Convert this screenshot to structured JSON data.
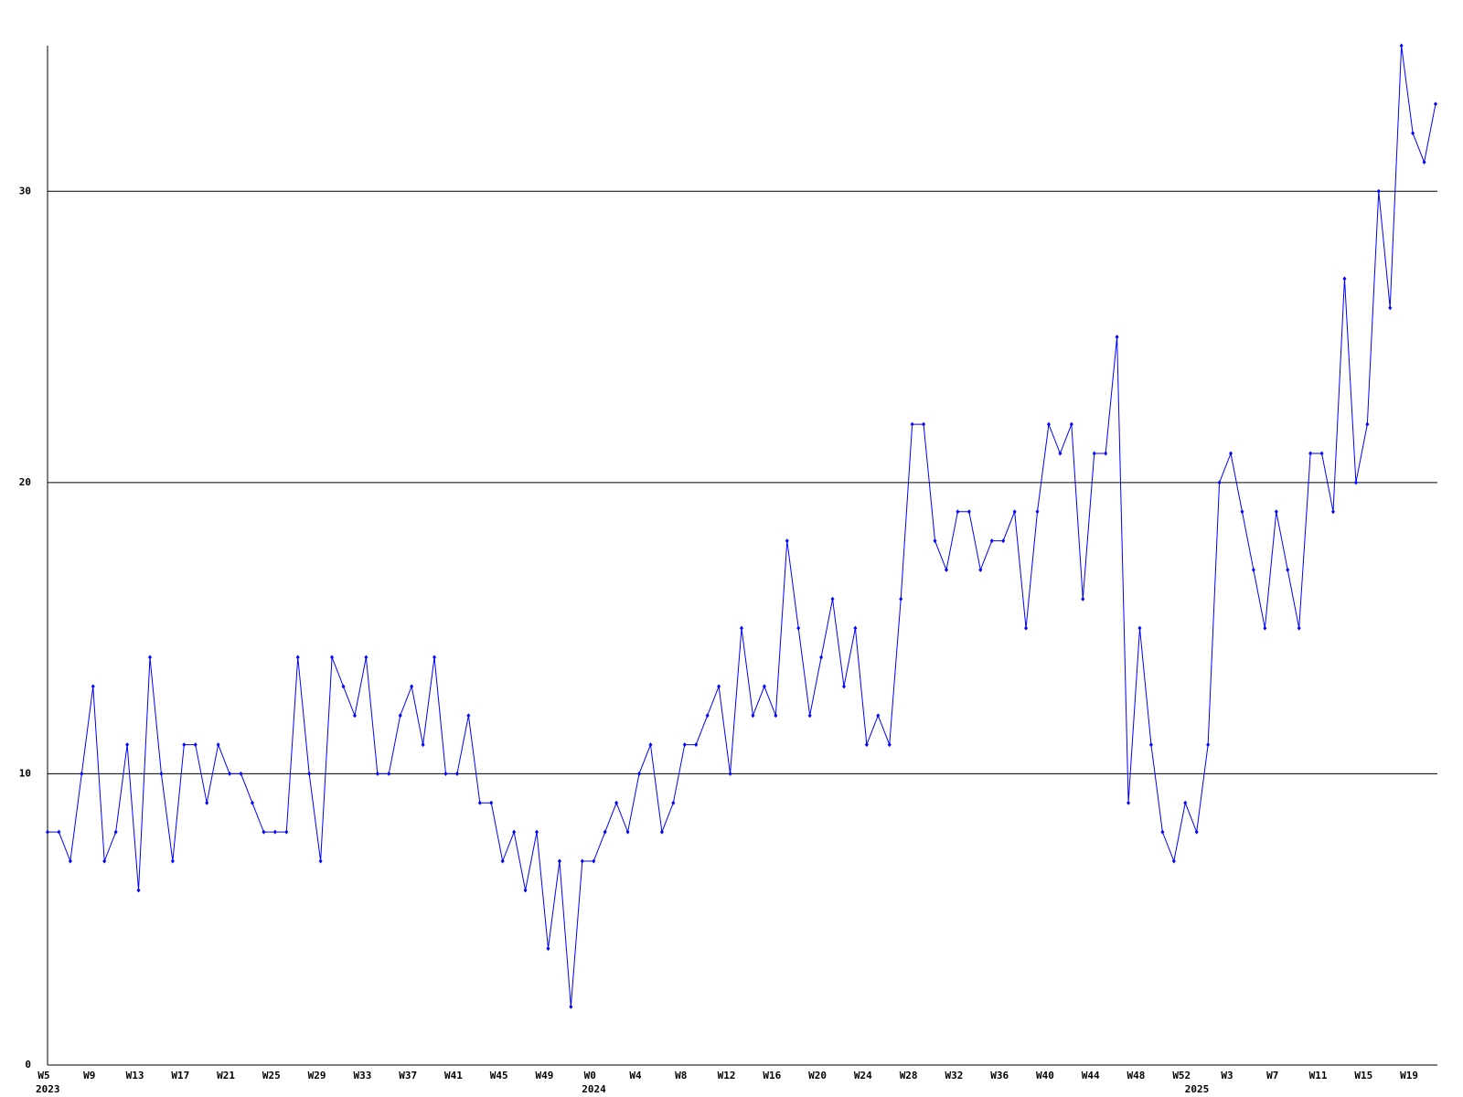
{
  "chart_data": {
    "type": "line",
    "categories": [
      "W5",
      null,
      null,
      null,
      "W9",
      null,
      null,
      null,
      "W13",
      null,
      null,
      null,
      "W17",
      null,
      null,
      null,
      "W21",
      null,
      null,
      null,
      "W25",
      null,
      null,
      null,
      "W29",
      null,
      null,
      null,
      "W33",
      null,
      null,
      null,
      "W37",
      null,
      null,
      null,
      "W41",
      null,
      null,
      null,
      "W45",
      null,
      null,
      null,
      "W49",
      null,
      null,
      null,
      "W0",
      null,
      null,
      null,
      "W4",
      null,
      null,
      null,
      "W8",
      null,
      null,
      null,
      "W12",
      null,
      null,
      null,
      "W16",
      null,
      null,
      null,
      "W20",
      null,
      null,
      null,
      "W24",
      null,
      null,
      null,
      "W28",
      null,
      null,
      null,
      "W32",
      null,
      null,
      null,
      "W36",
      null,
      null,
      null,
      "W40",
      null,
      null,
      null,
      "W44",
      null,
      null,
      null,
      "W48",
      null,
      null,
      null,
      "W52",
      null,
      null,
      null,
      "W3",
      null,
      null,
      null,
      "W7",
      null,
      null,
      null,
      "W11",
      null,
      null,
      null,
      "W15",
      null,
      null,
      null,
      "W19",
      null,
      null
    ],
    "year_labels": [
      "2023",
      null,
      null,
      null,
      null,
      null,
      null,
      null,
      null,
      null,
      null,
      null,
      null,
      null,
      null,
      null,
      null,
      null,
      null,
      null,
      null,
      null,
      null,
      null,
      null,
      null,
      null,
      null,
      null,
      null,
      null,
      null,
      null,
      null,
      null,
      null,
      null,
      null,
      null,
      null,
      null,
      null,
      null,
      null,
      null,
      null,
      null,
      null,
      "2024",
      null,
      null,
      null,
      null,
      null,
      null,
      null,
      null,
      null,
      null,
      null,
      null,
      null,
      null,
      null,
      null,
      null,
      null,
      null,
      null,
      null,
      null,
      null,
      null,
      null,
      null,
      null,
      null,
      null,
      null,
      null,
      null,
      null,
      null,
      null,
      null,
      null,
      null,
      null,
      null,
      null,
      null,
      null,
      null,
      null,
      null,
      null,
      null,
      null,
      null,
      null,
      null,
      "2025",
      null,
      null,
      null,
      null,
      null,
      null,
      null,
      null,
      null,
      null,
      null,
      null,
      null,
      null,
      null,
      null,
      null,
      null,
      null,
      null,
      null
    ],
    "series": [
      {
        "color": "#0000ff",
        "values": [
          8,
          8,
          7,
          10,
          13,
          7,
          8,
          11,
          6,
          14,
          10,
          7,
          11,
          11,
          9,
          11,
          10,
          10,
          9,
          8,
          8,
          8,
          14,
          10,
          7,
          14,
          13,
          12,
          14,
          10,
          10,
          12,
          13,
          11,
          14,
          10,
          10,
          12,
          9,
          9,
          7,
          8,
          6,
          8,
          4,
          7,
          2,
          7,
          7,
          8,
          9,
          8,
          10,
          11,
          8,
          9,
          11,
          11,
          12,
          13,
          10,
          15,
          12,
          13,
          12,
          18,
          15,
          12,
          14,
          16,
          13,
          15,
          11,
          12,
          11,
          16,
          22,
          22,
          18,
          17,
          19,
          19,
          17,
          18,
          18,
          19,
          15,
          19,
          22,
          21,
          22,
          16,
          21,
          21,
          25,
          9,
          15,
          11,
          8,
          7,
          9,
          8,
          11,
          20,
          21,
          19,
          17,
          15,
          19,
          17,
          15,
          21,
          21,
          19,
          27,
          20,
          22,
          30,
          26,
          35,
          32,
          31,
          33
        ]
      }
    ],
    "ylim": [
      0,
      35
    ],
    "yticks": [
      0,
      10,
      20,
      30
    ],
    "grid": true
  }
}
